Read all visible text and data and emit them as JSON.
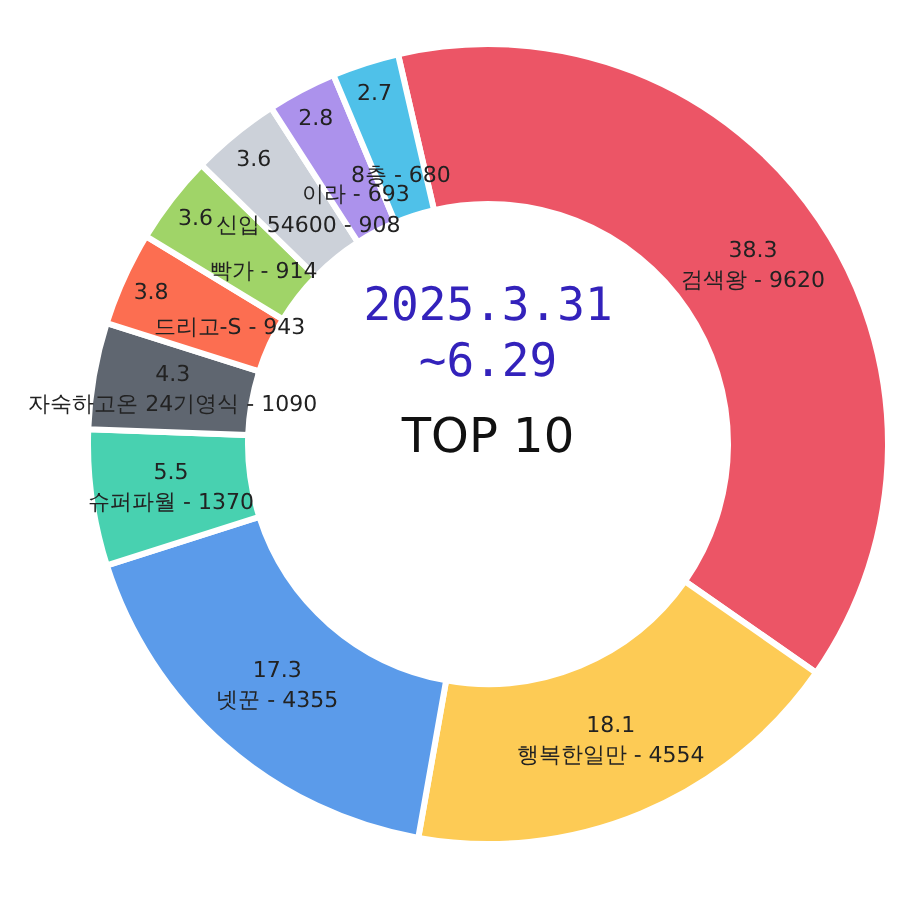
{
  "chart_data": {
    "type": "donut",
    "title": "TOP 10",
    "annotations": [
      "2025.3.31",
      "~6.29"
    ],
    "categories": [
      "검색왕 - 9620",
      "행복한일만 - 4554",
      "넷꾼 - 4355",
      "슈퍼파월 - 1370",
      "자숙하고온 24기영식 - 1090",
      "드리고-S - 943",
      "빡가 - 914",
      "신입 54600 - 908",
      "이라 - 693",
      "8층 - 680"
    ],
    "values": [
      38.3,
      18.1,
      17.3,
      5.5,
      4.3,
      3.8,
      3.6,
      3.6,
      2.8,
      2.7
    ],
    "colors": [
      "#ec5566",
      "#fdcb55",
      "#5b9bea",
      "#48d1b0",
      "#5f6670",
      "#fc6e51",
      "#a0d468",
      "#ccd1d9",
      "#ac92ec",
      "#4fc1e9"
    ],
    "data_labels": true,
    "legend": false
  }
}
